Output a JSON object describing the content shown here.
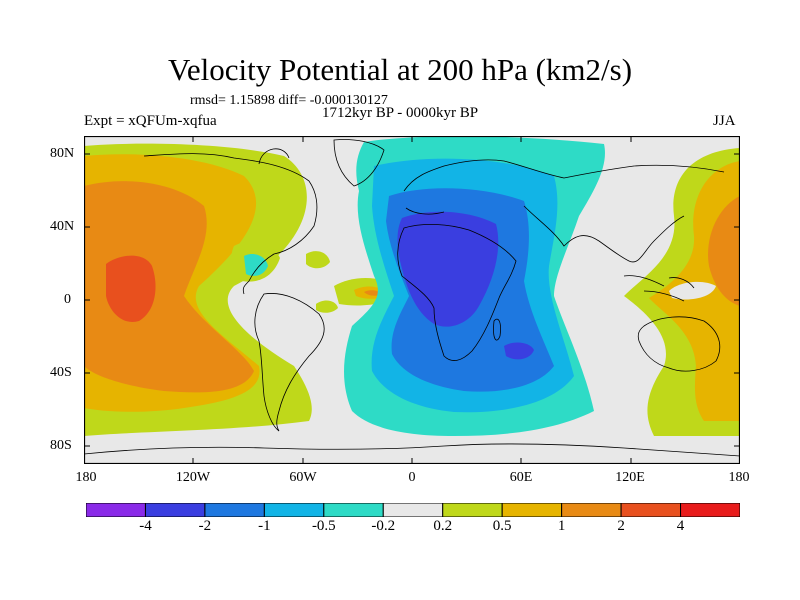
{
  "title": "Velocity Potential at 200 hPa (km2/s)",
  "stats": "rmsd= 1.15898 diff= -0.000130127",
  "subtitle": "1712kyr BP - 0000kyr BP",
  "experiment": "Expt = xQFUm-xqfua",
  "season": "JJA",
  "y_axis_labels": [
    "80N",
    "40N",
    "0",
    "40S",
    "80S"
  ],
  "x_axis_labels": [
    "180",
    "120W",
    "60W",
    "0",
    "60E",
    "120E",
    "180"
  ],
  "colorbar": {
    "labels": [
      "-4",
      "-2",
      "-1",
      "-0.5",
      "-0.2",
      "0.2",
      "0.5",
      "1",
      "2",
      "4"
    ],
    "colors": [
      "#8a2ae8",
      "#3a3ee0",
      "#1e78e0",
      "#12b4e6",
      "#2edbc6",
      "#e8e8e8",
      "#bfd81a",
      "#e6b400",
      "#e88a14",
      "#e8501e",
      "#e81c1c"
    ]
  },
  "map_colors": {
    "neutral": "#e8e8e8",
    "neg1": "#2edbc6",
    "neg2": "#12b4e6",
    "neg3": "#1e78e0",
    "neg4": "#3a3ee0",
    "pos1": "#bfd81a",
    "pos2": "#e6b400",
    "pos3": "#e88a14",
    "pos4": "#e8501e"
  }
}
